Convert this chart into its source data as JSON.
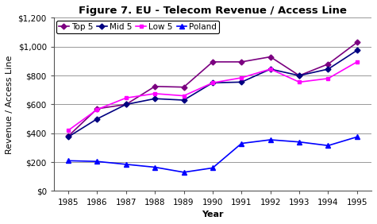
{
  "title": "Figure 7. EU - Telecom Revenue / Access Line",
  "xlabel": "Year",
  "ylabel": "Revenue / Access Line",
  "years": [
    1985,
    1986,
    1987,
    1988,
    1989,
    1990,
    1991,
    1992,
    1993,
    1994,
    1995
  ],
  "top5": [
    380,
    570,
    600,
    725,
    720,
    895,
    895,
    930,
    800,
    880,
    1030
  ],
  "mid5": [
    375,
    500,
    600,
    640,
    630,
    750,
    755,
    845,
    800,
    845,
    975
  ],
  "low5": [
    420,
    565,
    645,
    675,
    660,
    750,
    785,
    845,
    755,
    780,
    895
  ],
  "poland": [
    210,
    205,
    185,
    165,
    130,
    160,
    330,
    355,
    340,
    315,
    375
  ],
  "top5_color": "#7B0080",
  "mid5_color": "#000080",
  "low5_color": "#FF00FF",
  "poland_color": "#0000FF",
  "ylim": [
    0,
    1200
  ],
  "yticks": [
    0,
    200,
    400,
    600,
    800,
    1000,
    1200
  ],
  "ytick_labels": [
    "$0",
    "$200",
    "$400",
    "$600",
    "$800",
    "$1,000",
    "$1,200"
  ],
  "bg_color": "#ffffff",
  "grid_color": "#888888",
  "title_fontsize": 9.5,
  "axis_label_fontsize": 8,
  "tick_fontsize": 7.5,
  "legend_fontsize": 7.5
}
